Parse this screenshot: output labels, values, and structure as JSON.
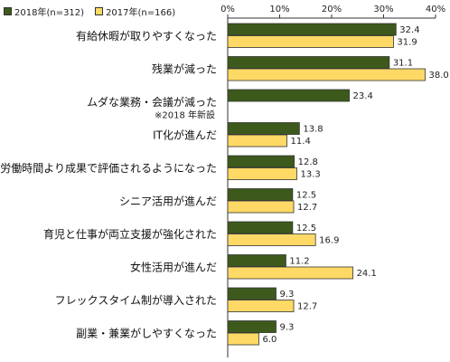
{
  "chart_data": {
    "type": "bar",
    "orientation": "horizontal",
    "categories": [
      "有給休暇が取りやすくなった",
      "残業が減った",
      "ムダな業務・会議が減った",
      "IT化が進んだ",
      "労働時間より成果で評価されるようになった",
      "シニア活用が進んだ",
      "育児と仕事が両立支援が強化された",
      "女性活用が進んだ",
      "フレックスタイム制が導入された",
      "副業・兼業がしやすくなった"
    ],
    "category_notes": [
      "",
      "",
      "※2018 年新設",
      "",
      "",
      "",
      "",
      "",
      "",
      ""
    ],
    "series": [
      {
        "name": "2018年(n=312)",
        "color": "#3d5a1c",
        "values": [
          32.4,
          31.1,
          23.4,
          13.8,
          12.8,
          12.5,
          12.5,
          11.2,
          9.3,
          9.3
        ]
      },
      {
        "name": "2017年(n=166)",
        "color": "#ffd966",
        "values": [
          31.9,
          38.0,
          null,
          11.4,
          13.3,
          12.7,
          16.9,
          24.1,
          12.7,
          6.0
        ]
      }
    ],
    "value_labels": [
      [
        "32.4",
        "31.1",
        "23.4",
        "13.8",
        "12.8",
        "12.5",
        "12.5",
        "11.2",
        "9.3",
        "9.3"
      ],
      [
        "31.9",
        "38.0",
        "",
        "11.4",
        "13.3",
        "12.7",
        "16.9",
        "24.1",
        "12.7",
        "6.0"
      ]
    ],
    "xlim": [
      0,
      40
    ],
    "x_ticks": [
      "0%",
      "10%",
      "20%",
      "30%",
      "40%"
    ],
    "x_tick_values": [
      0,
      10,
      20,
      30,
      40
    ],
    "axis_position": "top",
    "grid": false,
    "legend_position": "top-left"
  }
}
